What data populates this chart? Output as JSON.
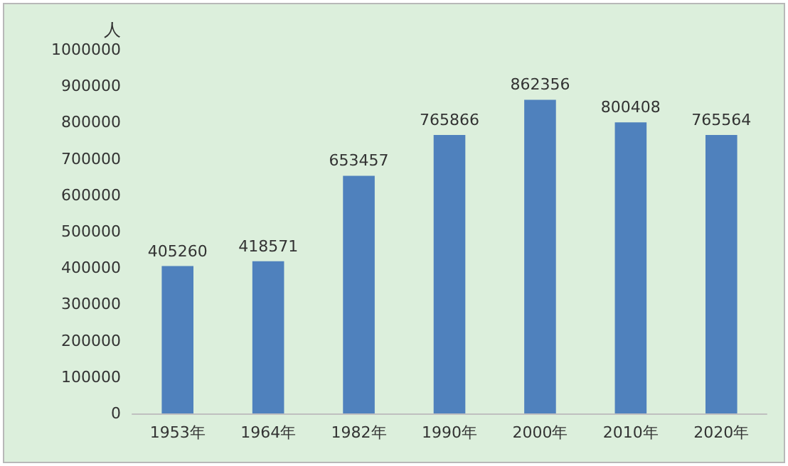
{
  "chart_data": {
    "type": "bar",
    "ylabel": "人",
    "categories": [
      "1953年",
      "1964年",
      "1982年",
      "1990年",
      "2000年",
      "2010年",
      "2020年"
    ],
    "values": [
      405260,
      418571,
      653457,
      765866,
      862356,
      800408,
      765564
    ],
    "color": "#4f81bd",
    "ylim": [
      0,
      1000000
    ],
    "yticks": [
      0,
      100000,
      200000,
      300000,
      400000,
      500000,
      600000,
      700000,
      800000,
      900000,
      1000000
    ],
    "grid": false,
    "data_labels": true
  }
}
